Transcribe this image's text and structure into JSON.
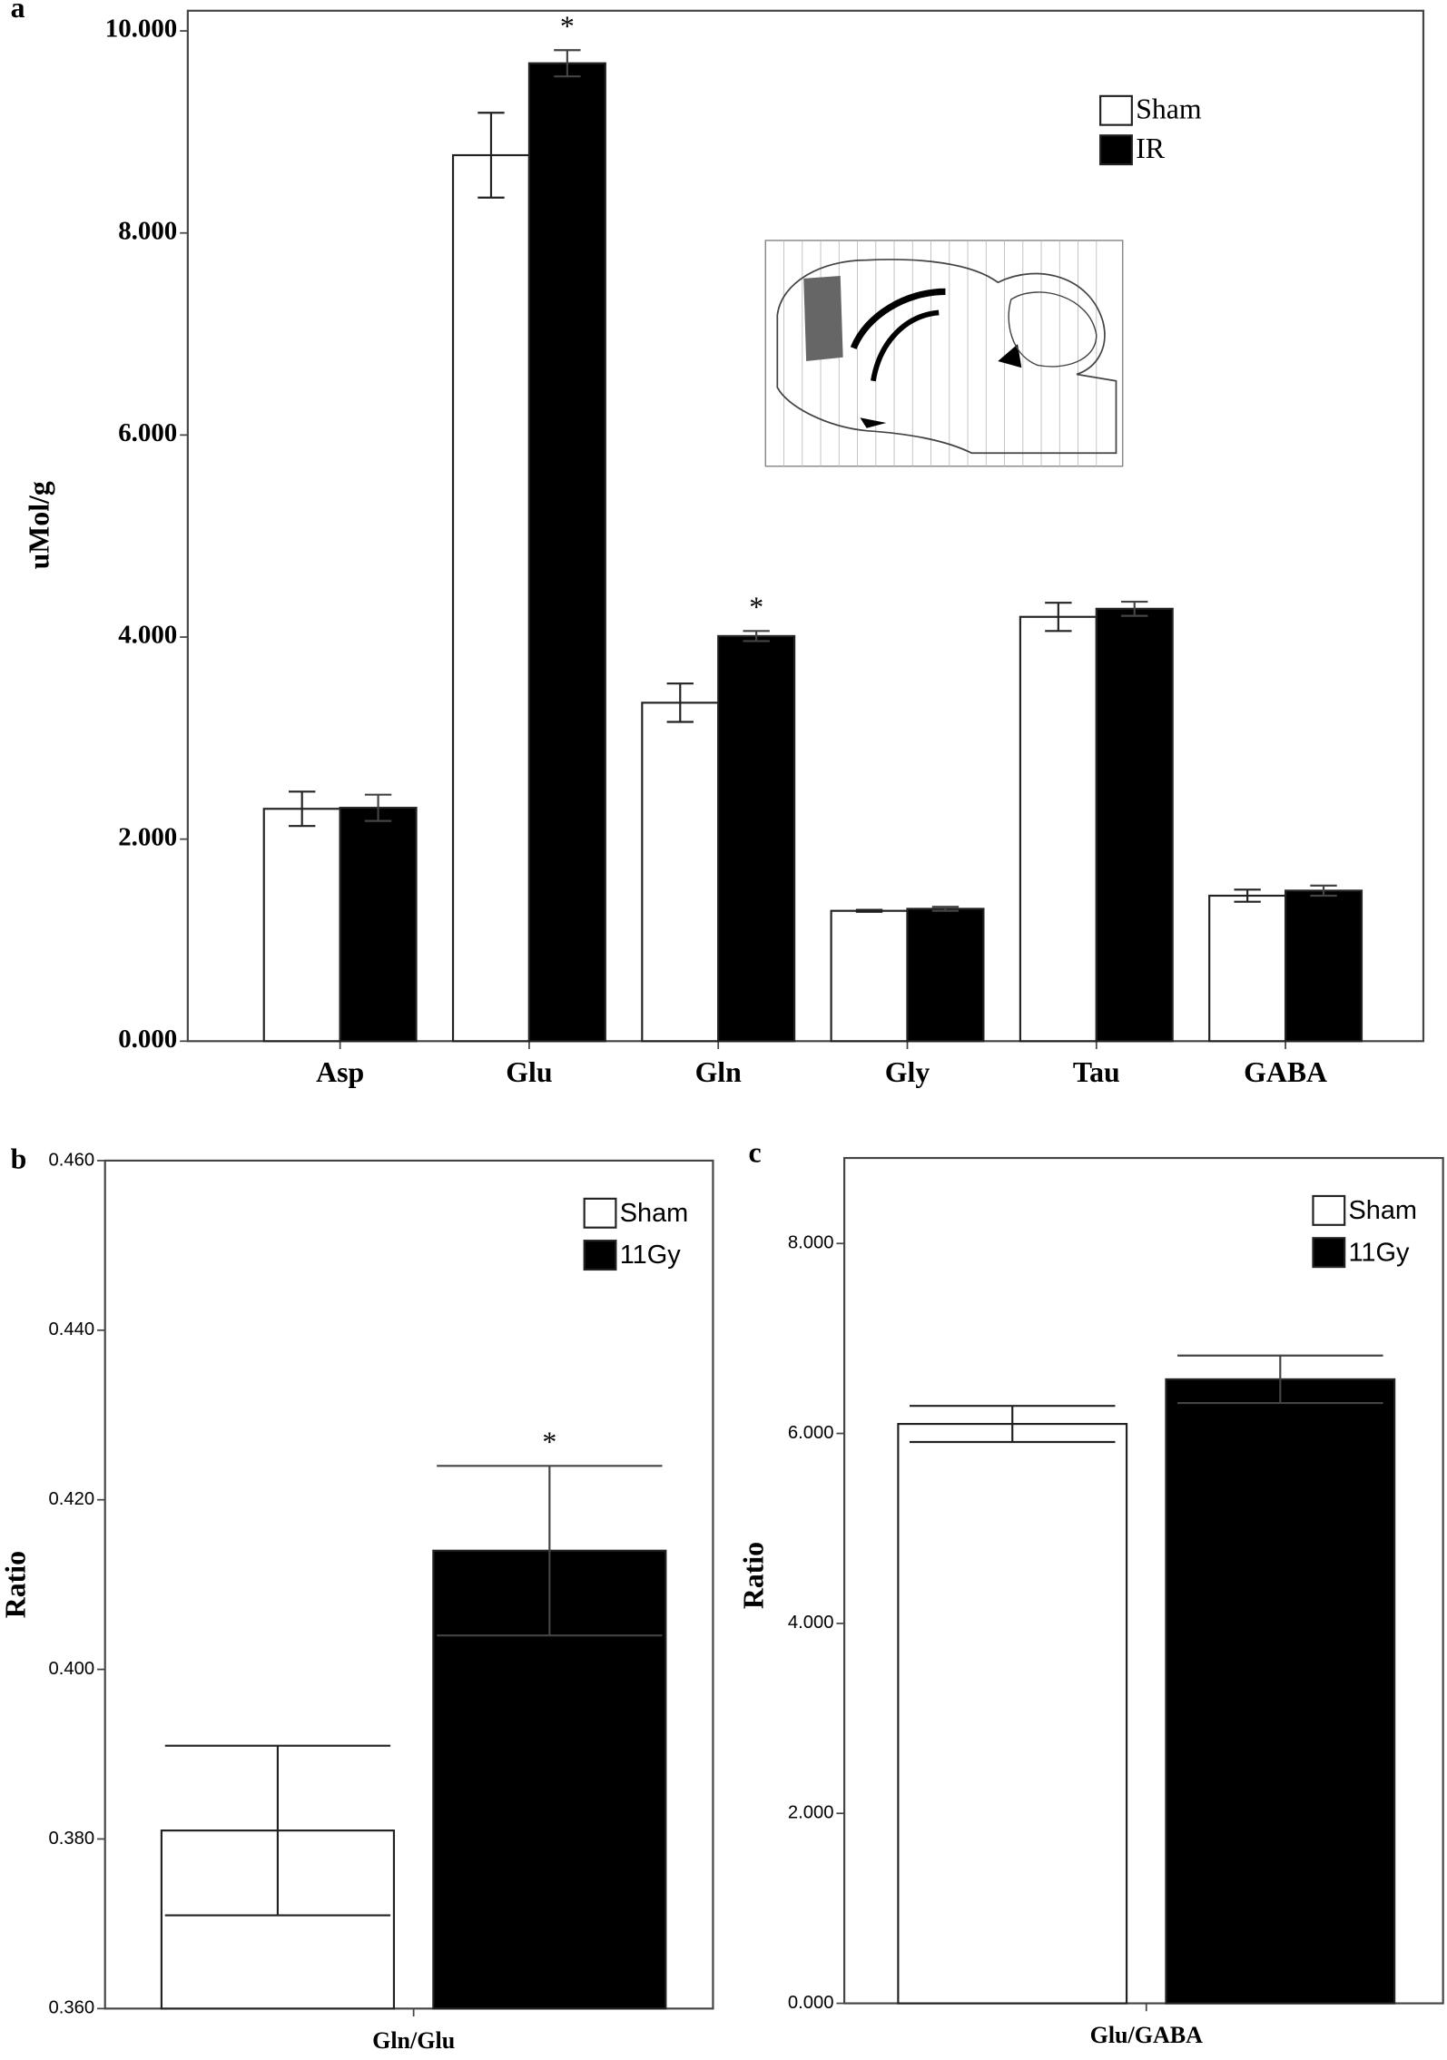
{
  "chart_data": [
    {
      "type": "bar",
      "label": "a",
      "y_label": "uMol/g",
      "categories": [
        "Asp",
        "Glu",
        "Gln",
        "Gly",
        "Tau",
        "GABA"
      ],
      "series": [
        {
          "name": "Sham",
          "color": "#ffffff",
          "values": [
            2.3,
            8.77,
            3.35,
            1.29,
            4.2,
            1.44
          ],
          "errors": [
            0.17,
            0.42,
            0.19,
            0.01,
            0.14,
            0.06
          ],
          "significance": [
            null,
            null,
            null,
            null,
            null,
            null
          ]
        },
        {
          "name": "IR",
          "color": "#000000",
          "values": [
            2.31,
            9.68,
            4.01,
            1.31,
            4.28,
            1.49
          ],
          "errors": [
            0.13,
            0.13,
            0.05,
            0.02,
            0.07,
            0.05
          ],
          "significance": [
            null,
            "*",
            "*",
            null,
            null,
            null
          ]
        }
      ],
      "ylim": [
        0,
        10.2
      ],
      "yticks": [
        {
          "value": 0,
          "label": "0.000"
        },
        {
          "value": 2,
          "label": "2.000"
        },
        {
          "value": 4,
          "label": "4.000"
        },
        {
          "value": 6,
          "label": "6.000"
        },
        {
          "value": 8,
          "label": "8.000"
        },
        {
          "value": 10,
          "label": "10.000"
        }
      ],
      "legend": "upper right"
    },
    {
      "type": "bar",
      "label": "b",
      "y_label": "Ratio",
      "categories": [
        "Gln/Glu"
      ],
      "series": [
        {
          "name": "Sham",
          "color": "#ffffff",
          "values": [
            0.381
          ],
          "errors": [
            0.01
          ],
          "significance": [
            null
          ]
        },
        {
          "name": "11Gy",
          "color": "#000000",
          "values": [
            0.414
          ],
          "errors": [
            0.01
          ],
          "significance": [
            "*"
          ]
        }
      ],
      "ylim": [
        0.36,
        0.46
      ],
      "yticks": [
        {
          "value": 0.36,
          "label": "0.360"
        },
        {
          "value": 0.38,
          "label": "0.380"
        },
        {
          "value": 0.4,
          "label": "0.400"
        },
        {
          "value": 0.42,
          "label": "0.420"
        },
        {
          "value": 0.44,
          "label": "0.440"
        },
        {
          "value": 0.46,
          "label": "0.460"
        }
      ],
      "legend": "upper right"
    },
    {
      "type": "bar",
      "label": "c",
      "y_label": "Ratio",
      "categories": [
        "Glu/GABA"
      ],
      "series": [
        {
          "name": "Sham",
          "color": "#ffffff",
          "values": [
            6.1
          ],
          "errors": [
            0.19
          ],
          "significance": [
            null
          ]
        },
        {
          "name": "11Gy",
          "color": "#000000",
          "values": [
            6.57
          ],
          "errors": [
            0.25
          ],
          "significance": [
            null
          ]
        }
      ],
      "ylim": [
        0,
        8.9
      ],
      "yticks": [
        {
          "value": 0,
          "label": "0.000"
        },
        {
          "value": 2,
          "label": "2.000"
        },
        {
          "value": 4,
          "label": "4.000"
        },
        {
          "value": 6,
          "label": "6.000"
        },
        {
          "value": 8,
          "label": "8.000"
        }
      ],
      "legend": "upper right"
    }
  ]
}
